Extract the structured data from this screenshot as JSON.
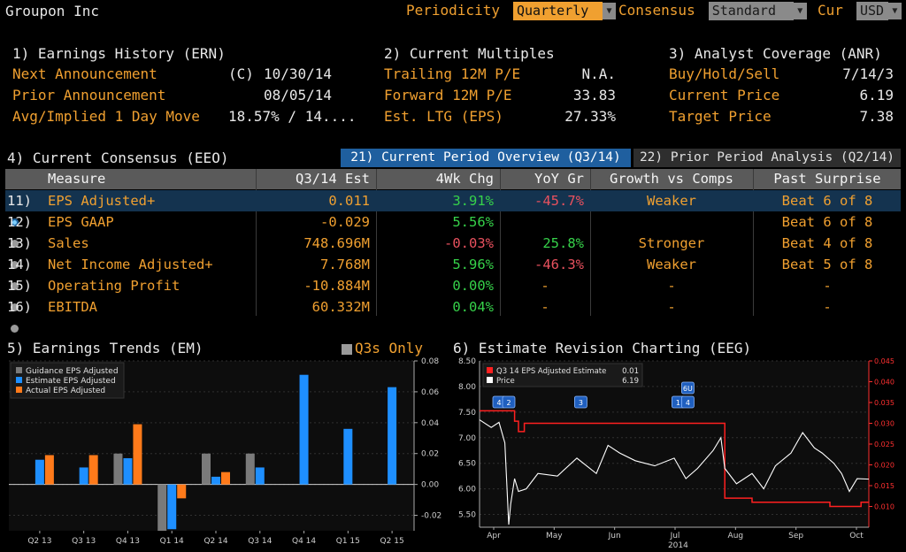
{
  "header": {
    "title": "Groupon Inc",
    "periodicity_label": "Periodicity",
    "periodicity_value": "Quarterly",
    "consensus_label": "Consensus",
    "consensus_value": "Standard",
    "currency_label": "Cur",
    "currency_value": "USD"
  },
  "earnings_history": {
    "title": "1) Earnings History (ERN)",
    "rows": [
      {
        "label": "Next Announcement",
        "flag": "(C)",
        "value": "10/30/14"
      },
      {
        "label": "Prior Announcement",
        "flag": "",
        "value": "08/05/14"
      },
      {
        "label": "Avg/Implied 1 Day Move",
        "flag": "",
        "value": "18.57% / 14...."
      }
    ]
  },
  "current_multiples": {
    "title": "2) Current Multiples",
    "rows": [
      {
        "label": "Trailing 12M P/E",
        "value": "N.A."
      },
      {
        "label": "Forward 12M P/E",
        "value": "33.83"
      },
      {
        "label": "Est. LTG (EPS)",
        "value": "27.33%"
      }
    ]
  },
  "analyst_coverage": {
    "title": "3) Analyst Coverage (ANR)",
    "rows": [
      {
        "label": "Buy/Hold/Sell",
        "value": "7/14/3"
      },
      {
        "label": "Current Price",
        "value": "6.19"
      },
      {
        "label": "Target Price",
        "value": "7.38"
      }
    ]
  },
  "consensus": {
    "title": "4) Current Consensus (EEO)",
    "tab_active": "21) Current Period Overview (Q3/14)",
    "tab_inactive": "22) Prior Period Analysis (Q2/14)",
    "columns": [
      "Measure",
      "Q3/14 Est",
      "4Wk Chg",
      "YoY Gr",
      "Growth vs Comps",
      "Past Surprise"
    ],
    "rows": [
      {
        "num": "11)",
        "measure": "EPS Adjusted+",
        "est": "0.011",
        "chg": "3.91%",
        "chg_color": "green",
        "yoy": "-45.7%",
        "yoy_color": "red",
        "comps": "Weaker",
        "surprise": "Beat 6 of 8"
      },
      {
        "num": "12)",
        "measure": "EPS GAAP",
        "est": "-0.029",
        "chg": "5.56%",
        "chg_color": "green",
        "yoy": "",
        "yoy_color": "white",
        "comps": "",
        "surprise": "Beat 6 of 8"
      },
      {
        "num": "13)",
        "measure": "Sales",
        "est": "748.696M",
        "chg": "-0.03%",
        "chg_color": "red",
        "yoy": "25.8%",
        "yoy_color": "green",
        "comps": "Stronger",
        "surprise": "Beat 4 of 8"
      },
      {
        "num": "14)",
        "measure": "Net Income Adjusted+",
        "est": "7.768M",
        "chg": "5.96%",
        "chg_color": "green",
        "yoy": "-46.3%",
        "yoy_color": "red",
        "comps": "Weaker",
        "surprise": "Beat 5 of 8"
      },
      {
        "num": "15)",
        "measure": "Operating Profit",
        "est": "-10.884M",
        "chg": "0.00%",
        "chg_color": "green",
        "yoy": "-",
        "yoy_color": "orange",
        "comps": "-",
        "surprise": "-"
      },
      {
        "num": "16)",
        "measure": "EBITDA",
        "est": "60.332M",
        "chg": "0.04%",
        "chg_color": "green",
        "yoy": "-",
        "yoy_color": "orange",
        "comps": "-",
        "surprise": "-"
      }
    ]
  },
  "earnings_trends": {
    "title": "5) Earnings Trends (EM)",
    "toggle_label": "Q3s Only"
  },
  "estimate_revision": {
    "title": "6) Estimate Revision Charting (EEG)"
  },
  "chart_data": [
    {
      "type": "bar",
      "categories": [
        "Q2 13",
        "Q3 13",
        "Q4 13",
        "Q1 14",
        "Q2 14",
        "Q3 14",
        "Q4 14",
        "Q1 15",
        "Q2 15"
      ],
      "series": [
        {
          "name": "Guidance EPS Adjusted",
          "color": "#7a7a7a",
          "values": [
            null,
            null,
            0.02,
            -0.03,
            0.02,
            0.02,
            null,
            null,
            null
          ]
        },
        {
          "name": "Estimate EPS Adjusted",
          "color": "#1e8fff",
          "values": [
            0.016,
            0.011,
            0.017,
            -0.029,
            0.005,
            0.011,
            0.071,
            0.036,
            0.063
          ]
        },
        {
          "name": "Actual EPS Adjusted",
          "color": "#ff7a1a",
          "values": [
            0.019,
            0.019,
            0.039,
            -0.009,
            0.008,
            null,
            null,
            null,
            null
          ]
        }
      ],
      "ylim": [
        -0.03,
        0.08
      ],
      "yticks": [
        "0.08",
        "0.06",
        "0.04",
        "0.02",
        "0.00",
        "-0.02"
      ],
      "grid": true,
      "legend": "top-left"
    },
    {
      "type": "line",
      "x_labels": [
        "Apr",
        "May",
        "Jun",
        "Jul",
        "Aug",
        "Sep",
        "Oct"
      ],
      "year_label": "2014",
      "series": [
        {
          "name": "Q3 14 EPS Adjusted Estimate",
          "legend_value": "0.01",
          "color": "#ff2020",
          "axis": "right",
          "x": [
            0,
            0.08,
            0.09,
            0.1,
            0.115,
            0.2,
            0.3,
            0.4,
            0.5,
            0.55,
            0.58,
            0.6,
            0.62,
            0.63,
            0.7,
            0.8,
            0.9,
            0.97,
            0.98,
            1.0
          ],
          "values": [
            0.033,
            0.033,
            0.0305,
            0.028,
            0.03,
            0.03,
            0.03,
            0.03,
            0.03,
            0.03,
            0.03,
            0.03,
            0.03,
            0.012,
            0.011,
            0.011,
            0.01,
            0.01,
            0.011,
            0.011
          ]
        },
        {
          "name": "Price",
          "legend_value": "6.19",
          "color": "#ffffff",
          "axis": "left",
          "x": [
            0,
            0.03,
            0.05,
            0.065,
            0.075,
            0.08,
            0.09,
            0.1,
            0.12,
            0.15,
            0.2,
            0.25,
            0.3,
            0.33,
            0.36,
            0.4,
            0.45,
            0.5,
            0.53,
            0.56,
            0.6,
            0.62,
            0.63,
            0.66,
            0.7,
            0.73,
            0.76,
            0.8,
            0.83,
            0.86,
            0.88,
            0.91,
            0.93,
            0.95,
            0.97,
            1.0
          ],
          "values": [
            7.35,
            7.2,
            7.3,
            6.9,
            5.3,
            5.7,
            6.2,
            5.95,
            6.0,
            6.3,
            6.25,
            6.6,
            6.3,
            6.85,
            6.7,
            6.55,
            6.45,
            6.6,
            6.2,
            6.4,
            6.75,
            7.0,
            6.4,
            6.1,
            6.3,
            6.0,
            6.45,
            6.7,
            7.1,
            6.8,
            6.7,
            6.5,
            6.3,
            5.95,
            6.2,
            6.19
          ]
        }
      ],
      "ylim_left": [
        5.25,
        8.5
      ],
      "yticks_left": [
        "8.50",
        "8.00",
        "7.50",
        "7.00",
        "6.50",
        "6.00",
        "5.50"
      ],
      "ylim_right": [
        0.005,
        0.045
      ],
      "yticks_right": [
        "0.045",
        "0.040",
        "0.035",
        "0.030",
        "0.025",
        "0.020",
        "0.015",
        "0.010"
      ],
      "markers": [
        "4",
        "2",
        "3",
        "1",
        "6U",
        "4"
      ],
      "grid": true,
      "legend": "top-left"
    }
  ]
}
